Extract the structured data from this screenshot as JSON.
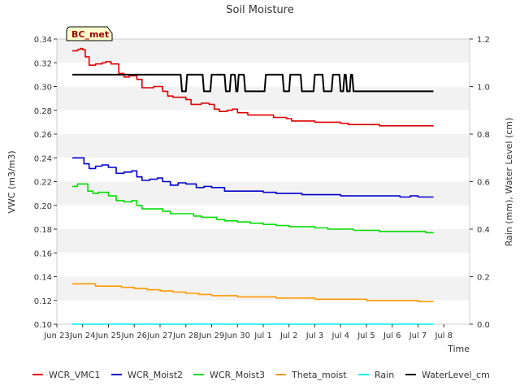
{
  "chart_data": {
    "type": "line",
    "title": "Soil Moisture",
    "xlabel": "Time",
    "ylabel": "VWC (m3/m3)",
    "y2label": "Rain (mm), Water Level (cm)",
    "station_label": "BC_met",
    "xlim": [
      0,
      16
    ],
    "ylim": [
      0.1,
      0.34
    ],
    "y2lim": [
      0.0,
      1.2
    ],
    "x_ticks": [
      {
        "value": 0,
        "label": "Jun 23"
      },
      {
        "value": 1,
        "label": "Jun 24"
      },
      {
        "value": 2,
        "label": "Jun 25"
      },
      {
        "value": 3,
        "label": "Jun 26"
      },
      {
        "value": 4,
        "label": "Jun 27"
      },
      {
        "value": 5,
        "label": "Jun 28"
      },
      {
        "value": 6,
        "label": "Jun 29"
      },
      {
        "value": 7,
        "label": "Jun 30"
      },
      {
        "value": 8,
        "label": "Jul 1"
      },
      {
        "value": 9,
        "label": "Jul 2"
      },
      {
        "value": 10,
        "label": "Jul 3"
      },
      {
        "value": 11,
        "label": "Jul 4"
      },
      {
        "value": 12,
        "label": "Jul 5"
      },
      {
        "value": 13,
        "label": "Jul 6"
      },
      {
        "value": 14,
        "label": "Jul 7"
      },
      {
        "value": 15,
        "label": "Jul 8"
      }
    ],
    "y_ticks": [
      "0.10",
      "0.12",
      "0.14",
      "0.16",
      "0.18",
      "0.20",
      "0.22",
      "0.24",
      "0.26",
      "0.28",
      "0.30",
      "0.32",
      "0.34"
    ],
    "y2_ticks": [
      "0.0",
      "0.2",
      "0.4",
      "0.6",
      "0.8",
      "1.0",
      "1.2"
    ],
    "grid": "horizontal bands",
    "legend_position": "bottom",
    "series": [
      {
        "name": "WCR_VMC1",
        "color": "#dd0000",
        "axis": "left",
        "x": [
          0.6,
          0.8,
          0.9,
          1.0,
          1.1,
          1.25,
          1.5,
          1.75,
          1.9,
          2.1,
          2.4,
          2.6,
          2.8,
          2.95,
          3.1,
          3.3,
          3.5,
          3.75,
          3.9,
          4.1,
          4.3,
          4.5,
          4.9,
          5.0,
          5.2,
          5.4,
          5.6,
          5.9,
          6.1,
          6.3,
          6.6,
          6.8,
          7.0,
          7.4,
          7.7,
          8.0,
          8.4,
          8.7,
          8.9,
          9.1,
          9.4,
          9.7,
          10.0,
          10.5,
          11.0,
          11.3,
          11.6,
          12.0,
          12.5,
          13.0,
          13.5,
          14.0,
          14.6
        ],
        "y": [
          0.33,
          0.331,
          0.332,
          0.331,
          0.325,
          0.318,
          0.319,
          0.32,
          0.321,
          0.319,
          0.311,
          0.308,
          0.309,
          0.309,
          0.306,
          0.299,
          0.299,
          0.3,
          0.3,
          0.296,
          0.292,
          0.291,
          0.291,
          0.289,
          0.285,
          0.285,
          0.286,
          0.285,
          0.281,
          0.279,
          0.28,
          0.281,
          0.278,
          0.276,
          0.276,
          0.276,
          0.274,
          0.274,
          0.273,
          0.271,
          0.271,
          0.271,
          0.27,
          0.27,
          0.269,
          0.268,
          0.268,
          0.268,
          0.267,
          0.267,
          0.267,
          0.267,
          0.267
        ]
      },
      {
        "name": "WCR_Moist2",
        "color": "#0000cc",
        "axis": "left",
        "x": [
          0.6,
          0.9,
          1.05,
          1.25,
          1.5,
          1.75,
          2.0,
          2.3,
          2.6,
          2.9,
          3.1,
          3.3,
          3.6,
          3.9,
          4.1,
          4.4,
          4.7,
          5.0,
          5.4,
          5.7,
          6.0,
          6.5,
          7.0,
          7.5,
          8.0,
          8.5,
          9.0,
          9.5,
          10.0,
          10.5,
          11.0,
          11.5,
          12.0,
          12.5,
          13.0,
          13.3,
          13.7,
          14.0,
          14.6
        ],
        "y": [
          0.24,
          0.24,
          0.235,
          0.231,
          0.233,
          0.234,
          0.232,
          0.227,
          0.228,
          0.229,
          0.224,
          0.221,
          0.222,
          0.223,
          0.22,
          0.217,
          0.219,
          0.218,
          0.215,
          0.216,
          0.215,
          0.212,
          0.212,
          0.212,
          0.211,
          0.21,
          0.21,
          0.209,
          0.209,
          0.209,
          0.208,
          0.208,
          0.208,
          0.208,
          0.208,
          0.207,
          0.208,
          0.207,
          0.207
        ]
      },
      {
        "name": "WCR_Moist3",
        "color": "#00dd00",
        "axis": "left",
        "x": [
          0.6,
          0.8,
          1.0,
          1.2,
          1.4,
          1.6,
          1.8,
          2.0,
          2.3,
          2.6,
          2.9,
          3.1,
          3.3,
          3.6,
          3.9,
          4.1,
          4.4,
          4.7,
          5.0,
          5.3,
          5.6,
          5.9,
          6.2,
          6.5,
          7.0,
          7.5,
          8.0,
          8.5,
          9.0,
          9.5,
          10.0,
          10.5,
          11.0,
          11.5,
          12.0,
          12.5,
          13.0,
          13.5,
          14.0,
          14.3,
          14.6
        ],
        "y": [
          0.216,
          0.218,
          0.218,
          0.212,
          0.21,
          0.211,
          0.211,
          0.208,
          0.204,
          0.203,
          0.204,
          0.2,
          0.197,
          0.197,
          0.197,
          0.195,
          0.193,
          0.193,
          0.193,
          0.191,
          0.19,
          0.19,
          0.188,
          0.187,
          0.186,
          0.185,
          0.184,
          0.183,
          0.182,
          0.182,
          0.181,
          0.18,
          0.18,
          0.179,
          0.179,
          0.178,
          0.178,
          0.178,
          0.178,
          0.177,
          0.177
        ]
      },
      {
        "name": "Theta_moist",
        "color": "#ff9900",
        "axis": "left",
        "x": [
          0.6,
          1.0,
          1.5,
          2.0,
          2.5,
          3.0,
          3.5,
          4.0,
          4.5,
          5.0,
          5.5,
          6.0,
          6.5,
          7.0,
          7.5,
          8.0,
          8.5,
          9.0,
          9.5,
          10.0,
          10.5,
          11.0,
          11.5,
          12.0,
          12.5,
          13.0,
          13.5,
          14.0,
          14.6
        ],
        "y": [
          0.134,
          0.134,
          0.132,
          0.132,
          0.131,
          0.13,
          0.129,
          0.128,
          0.127,
          0.126,
          0.125,
          0.124,
          0.124,
          0.123,
          0.123,
          0.123,
          0.122,
          0.122,
          0.122,
          0.121,
          0.121,
          0.121,
          0.121,
          0.12,
          0.12,
          0.12,
          0.12,
          0.119,
          0.119
        ]
      },
      {
        "name": "Rain",
        "color": "#00eeee",
        "axis": "right",
        "x": [
          0.6,
          14.6
        ],
        "y": [
          0.0,
          0.0
        ]
      },
      {
        "name": "WaterLevel_cm",
        "color": "#000000",
        "axis": "right",
        "x": [
          0.6,
          4.8,
          4.85,
          5.0,
          5.05,
          5.65,
          5.7,
          5.95,
          6.0,
          6.5,
          6.55,
          6.7,
          6.75,
          6.9,
          6.95,
          7.0,
          7.05,
          7.25,
          7.3,
          8.05,
          8.1,
          8.75,
          8.8,
          9.0,
          9.05,
          9.45,
          9.5,
          9.95,
          10.0,
          10.3,
          10.35,
          10.65,
          10.7,
          10.95,
          11.0,
          11.1,
          11.15,
          11.2,
          11.25,
          11.35,
          11.4,
          11.45,
          11.5,
          11.55,
          11.6,
          14.6
        ],
        "y": [
          1.05,
          1.05,
          0.98,
          0.98,
          1.05,
          1.05,
          0.98,
          0.98,
          1.05,
          1.05,
          0.98,
          0.98,
          1.05,
          1.05,
          0.98,
          0.98,
          1.05,
          1.05,
          0.98,
          0.98,
          1.05,
          1.05,
          0.98,
          0.98,
          1.05,
          1.05,
          0.98,
          0.98,
          1.05,
          1.05,
          0.98,
          0.98,
          1.05,
          1.05,
          0.98,
          0.98,
          1.05,
          1.05,
          0.98,
          0.98,
          1.05,
          1.05,
          0.98,
          0.98,
          0.98,
          0.98
        ]
      }
    ]
  }
}
